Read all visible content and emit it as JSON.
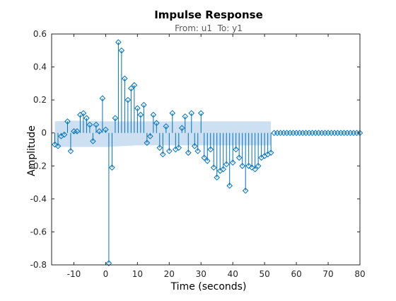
{
  "chart_data": {
    "type": "stem",
    "title": "Impulse Response",
    "subtitle": "From: u1  To: y1",
    "xlabel": "Time (seconds)",
    "ylabel": "Amplitude",
    "xlim": [
      -17,
      80
    ],
    "ylim": [
      -0.8,
      0.6
    ],
    "xticks": [
      -10,
      0,
      10,
      20,
      30,
      40,
      50,
      60,
      70,
      80
    ],
    "xtick_labels": [
      "-10",
      "0",
      "10",
      "20",
      "30",
      "40",
      "50",
      "60",
      "70",
      "80"
    ],
    "yticks": [
      -0.8,
      -0.6,
      -0.4,
      -0.2,
      0,
      0.2,
      0.4,
      0.6
    ],
    "ytick_labels": [
      "-0.8",
      "-0.6",
      "-0.4",
      "-0.2",
      "0",
      "0.2",
      "0.4",
      "0.6"
    ],
    "grid": false,
    "colors": {
      "stem": "#0072bd",
      "band": "#c6ddef",
      "axis": "#262626"
    },
    "confidence_band": {
      "x": [
        -16,
        -10,
        0,
        10,
        20,
        30,
        40,
        50,
        52
      ],
      "upper": [
        0.07,
        0.075,
        0.07,
        0.07,
        0.07,
        0.07,
        0.07,
        0.07,
        0.07
      ],
      "lower": [
        -0.085,
        -0.085,
        -0.085,
        -0.075,
        -0.075,
        -0.075,
        -0.075,
        -0.075,
        -0.075
      ]
    },
    "series": [
      {
        "x": [
          -16,
          -15,
          -14,
          -13,
          -12,
          -11,
          -10,
          -9,
          -8,
          -7,
          -6,
          -5,
          -4,
          -3,
          -2,
          -1,
          0,
          1,
          2,
          3,
          4,
          5,
          6,
          7,
          8,
          9,
          10,
          11,
          12,
          13,
          14,
          15,
          16,
          17,
          18,
          19,
          20,
          21,
          22,
          23,
          24,
          25,
          26,
          27,
          28,
          29,
          30,
          31,
          32,
          33,
          34,
          35,
          36,
          37,
          38,
          39,
          40,
          41,
          42,
          43,
          44,
          45,
          46,
          47,
          48,
          49,
          50,
          51,
          52,
          53,
          54,
          55,
          56,
          57,
          58,
          59,
          60,
          61,
          62,
          63,
          64,
          65,
          66,
          67,
          68,
          69,
          70,
          71,
          72,
          73,
          74,
          75,
          76,
          77,
          78,
          79,
          80
        ],
        "y": [
          -0.07,
          -0.08,
          -0.02,
          -0.01,
          0.07,
          -0.11,
          0.01,
          0.01,
          0.11,
          0.12,
          0.09,
          0.05,
          -0.05,
          0.05,
          0.01,
          0.21,
          0.02,
          -0.79,
          -0.21,
          0.09,
          0.55,
          0.5,
          0.33,
          0.2,
          0.27,
          0.29,
          0.15,
          0.11,
          0.17,
          -0.06,
          -0.02,
          0.11,
          0.06,
          -0.09,
          -0.13,
          0.04,
          -0.11,
          0.12,
          -0.1,
          -0.09,
          0.03,
          0.1,
          -0.12,
          0.12,
          -0.08,
          -0.11,
          0.12,
          -0.15,
          -0.17,
          -0.1,
          -0.21,
          -0.27,
          -0.23,
          -0.22,
          -0.19,
          -0.32,
          -0.18,
          -0.1,
          -0.15,
          -0.2,
          -0.35,
          -0.2,
          -0.21,
          -0.22,
          -0.2,
          -0.15,
          -0.14,
          -0.13,
          -0.12,
          0,
          0,
          0,
          0,
          0,
          0,
          0,
          0,
          0,
          0,
          0,
          0,
          0,
          0,
          0,
          0,
          0,
          0,
          0,
          0,
          0,
          0,
          0,
          0,
          0,
          0,
          0,
          0
        ]
      }
    ]
  }
}
